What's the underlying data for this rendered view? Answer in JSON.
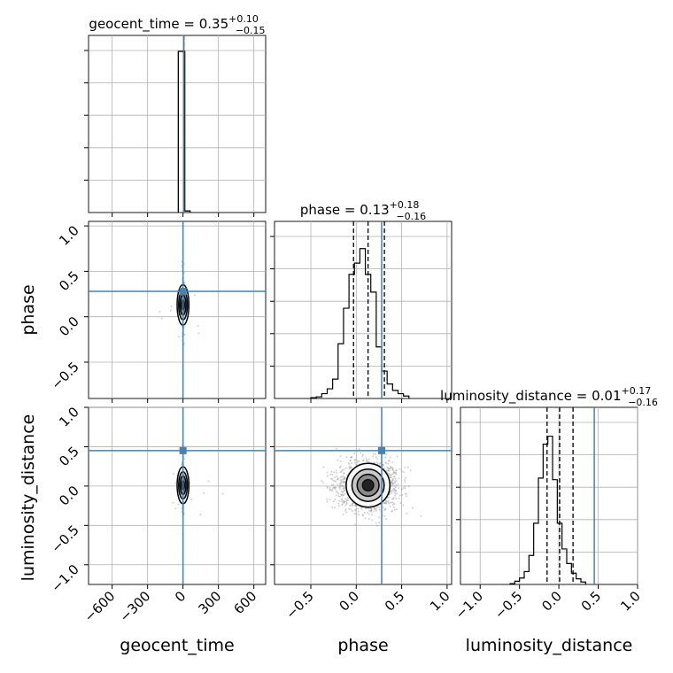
{
  "chart_data": {
    "type": "corner",
    "parameters": [
      "geocent_time",
      "phase",
      "luminosity_distance"
    ],
    "truths": {
      "geocent_time": 0.0,
      "phase": 0.28,
      "luminosity_distance": 0.45
    },
    "titles": [
      {
        "param": "geocent_time",
        "prefix": "geocent_time = ",
        "median": "0.35",
        "plus": "+0.10",
        "minus": "−0.15"
      },
      {
        "param": "phase",
        "prefix": "phase = ",
        "median": "0.13",
        "plus": "+0.18",
        "minus": "−0.16"
      },
      {
        "param": "luminosity_distance",
        "prefix": "luminosity_distance = ",
        "median": "0.01",
        "plus": "+0.17",
        "minus": "−0.16"
      }
    ],
    "ranges": {
      "geocent_time": [
        -800,
        700
      ],
      "phase": [
        -0.9,
        1.05
      ],
      "luminosity_distance": [
        -1.25,
        1.0
      ]
    },
    "ticks": {
      "geocent_time": {
        "values": [
          -600,
          -300,
          0,
          300,
          600
        ],
        "labels": [
          "−600",
          "−300",
          "0",
          "300",
          "600"
        ]
      },
      "phase_x": {
        "values": [
          -0.5,
          0.0,
          0.5,
          1.0
        ],
        "labels": [
          "−0.5",
          "0.0",
          "0.5",
          "1.0"
        ]
      },
      "phase_y": {
        "values": [
          -0.5,
          0.0,
          0.5,
          1.0
        ],
        "labels": [
          "−0.5",
          "0.0",
          "0.5",
          "1.0"
        ]
      },
      "luminosity_distance_x": {
        "values": [
          -1.0,
          -0.5,
          0.0,
          0.5,
          1.0
        ],
        "labels": [
          "−1.0",
          "−0.5",
          "0.0",
          "0.5",
          "1.0"
        ]
      },
      "luminosity_distance_y": {
        "values": [
          -1.0,
          -0.5,
          0.0,
          0.5,
          1.0
        ],
        "labels": [
          "−1.0",
          "−0.5",
          "0.0",
          "0.5",
          "1.0"
        ]
      }
    },
    "quantiles": {
      "geocent_time": [
        0.2,
        0.35,
        0.45
      ],
      "phase": [
        -0.03,
        0.13,
        0.31
      ],
      "luminosity_distance": [
        -0.15,
        0.01,
        0.18
      ]
    },
    "histograms": {
      "geocent_time": {
        "bins": [
          [
            -40,
            0,
            1.0
          ],
          [
            0,
            15,
            1.0
          ],
          [
            15,
            60,
            0.01
          ]
        ]
      },
      "phase": {
        "bin_start": -0.5,
        "bin_width": 0.06,
        "counts": [
          0.005,
          0.01,
          0.03,
          0.06,
          0.12,
          0.34,
          0.56,
          0.77,
          0.84,
          0.93,
          0.77,
          0.66,
          0.32,
          0.17,
          0.09,
          0.05,
          0.03,
          0.015
        ]
      },
      "luminosity_distance": {
        "bin_start": -0.62,
        "bin_width": 0.06,
        "counts": [
          0.005,
          0.02,
          0.04,
          0.08,
          0.18,
          0.38,
          0.66,
          0.87,
          0.92,
          0.65,
          0.38,
          0.22,
          0.13,
          0.07,
          0.035,
          0.015
        ]
      }
    },
    "pairs": [
      {
        "x": "geocent_time",
        "y": "phase",
        "center": [
          0,
          0.13
        ],
        "spread": [
          6,
          0.17
        ]
      },
      {
        "x": "geocent_time",
        "y": "luminosity_distance",
        "center": [
          0,
          0.01
        ],
        "spread": [
          6,
          0.16
        ]
      },
      {
        "x": "phase",
        "y": "luminosity_distance",
        "center": [
          0.13,
          0.01
        ],
        "spread": [
          0.17,
          0.16
        ]
      }
    ],
    "colors": {
      "truth": "#4682b4",
      "hist": "#000000",
      "scatter": "#9a9a9a",
      "contour": "#000000"
    }
  }
}
